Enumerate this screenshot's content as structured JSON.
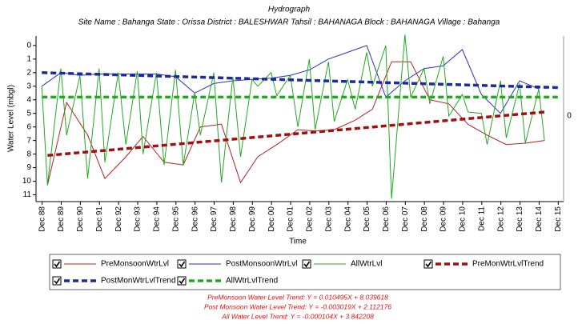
{
  "chart_data": {
    "type": "line",
    "title": "Hydrograph",
    "subtitle": "Site Name : Bahanga  State : Orissa District : BALESHWAR  Tahsil : BAHANAGA  Block : BAHANAGA Village : Bahanga",
    "y_label": "Water Level (mbgl)",
    "x_label": "Time",
    "right_label": "0",
    "y_inverted": true,
    "ylim": [
      -0.7,
      11.5
    ],
    "yticks": [
      0,
      1,
      2,
      3,
      4,
      5,
      6,
      7,
      8,
      9,
      10,
      11
    ],
    "xlim": [
      1988.6,
      2016.2
    ],
    "xticks": [
      {
        "value": 1988.92,
        "label": "Dec 88"
      },
      {
        "value": 1989.92,
        "label": "Dec 89"
      },
      {
        "value": 1990.92,
        "label": "Dec 90"
      },
      {
        "value": 1991.92,
        "label": "Dec 91"
      },
      {
        "value": 1992.92,
        "label": "Dec 92"
      },
      {
        "value": 1993.92,
        "label": "Dec 93"
      },
      {
        "value": 1994.92,
        "label": "Dec 94"
      },
      {
        "value": 1995.92,
        "label": "Dec 95"
      },
      {
        "value": 1996.92,
        "label": "Dec 96"
      },
      {
        "value": 1997.92,
        "label": "Dec 97"
      },
      {
        "value": 1998.92,
        "label": "Dec 98"
      },
      {
        "value": 1999.92,
        "label": "Dec 99"
      },
      {
        "value": 2000.92,
        "label": "Dec 00"
      },
      {
        "value": 2001.92,
        "label": "Dec 01"
      },
      {
        "value": 2002.92,
        "label": "Dec 02"
      },
      {
        "value": 2003.92,
        "label": "Dec 03"
      },
      {
        "value": 2004.92,
        "label": "Dec 04"
      },
      {
        "value": 2005.92,
        "label": "Dec 05"
      },
      {
        "value": 2006.92,
        "label": "Dec 06"
      },
      {
        "value": 2007.92,
        "label": "Dec 07"
      },
      {
        "value": 2008.92,
        "label": "Dec 08"
      },
      {
        "value": 2009.92,
        "label": "Dec 09"
      },
      {
        "value": 2010.92,
        "label": "Dec 10"
      },
      {
        "value": 2011.92,
        "label": "Dec 11"
      },
      {
        "value": 2012.92,
        "label": "Dec 12"
      },
      {
        "value": 2013.92,
        "label": "Dec 13"
      },
      {
        "value": 2014.92,
        "label": "Dec 14"
      },
      {
        "value": 2015.92,
        "label": "Dec 15"
      }
    ],
    "series": [
      {
        "name": "PreMonsoonWtrLvl",
        "color": "#b22222",
        "width": 1,
        "dashed": false,
        "x": [
          1989.2,
          1990.2,
          1991.3,
          1992.2,
          1993.3,
          1994.2,
          1995.3,
          1996.3,
          1997.2,
          1998.3,
          1999.3,
          2000.2,
          2001.2,
          2002.3,
          2003.2,
          2004.2,
          2005.3,
          2006.2,
          2007.2,
          2008.2,
          2009.2,
          2010.2,
          2011.2,
          2012.2,
          2013.2,
          2014.2,
          2015.2
        ],
        "values": [
          10.3,
          4.2,
          6.6,
          9.8,
          8.2,
          6.7,
          8.6,
          8.8,
          6.0,
          5.8,
          10.1,
          8.2,
          7.3,
          6.2,
          6.3,
          6.2,
          5.5,
          4.7,
          1.2,
          1.2,
          4.0,
          4.3,
          5.8,
          6.6,
          7.3,
          7.2,
          7.0
        ]
      },
      {
        "name": "PostMonsoonWtrLvl",
        "color": "#3030c0",
        "width": 1,
        "dashed": false,
        "x": [
          1988.9,
          1989.9,
          1990.9,
          1991.9,
          1992.9,
          1993.9,
          1994.9,
          1995.9,
          1996.9,
          1997.9,
          1998.9,
          1999.9,
          2000.9,
          2001.9,
          2002.9,
          2003.9,
          2004.9,
          2005.9,
          2006.9,
          2007.9,
          2008.9,
          2009.9,
          2010.9,
          2011.9,
          2012.9,
          2013.9,
          2014.9
        ],
        "values": [
          3.0,
          2.0,
          2.2,
          2.1,
          2.1,
          2.1,
          2.1,
          2.3,
          3.5,
          2.8,
          2.6,
          2.5,
          2.4,
          2.2,
          1.8,
          1.0,
          0.5,
          0.0,
          3.8,
          2.6,
          1.7,
          1.5,
          0.3,
          3.6,
          5.0,
          2.6,
          3.2
        ]
      },
      {
        "name": "AllWtrLvl",
        "color": "#22a822",
        "width": 1,
        "dashed": false,
        "x": [
          1988.9,
          1989.2,
          1989.9,
          1990.2,
          1990.9,
          1991.3,
          1991.9,
          1992.2,
          1992.9,
          1993.3,
          1993.9,
          1994.2,
          1994.9,
          1995.3,
          1995.9,
          1996.3,
          1996.9,
          1997.2,
          1997.9,
          1998.3,
          1998.9,
          1999.3,
          1999.9,
          2000.2,
          2000.9,
          2001.2,
          2001.9,
          2002.3,
          2002.9,
          2003.2,
          2003.9,
          2004.2,
          2004.9,
          2005.3,
          2005.9,
          2006.2,
          2006.9,
          2007.2,
          2007.9,
          2008.2,
          2008.9,
          2009.2,
          2009.9,
          2010.2,
          2010.9,
          2011.2,
          2011.9,
          2012.2,
          2012.9,
          2013.2,
          2013.9,
          2014.2,
          2014.9,
          2015.2
        ],
        "values": [
          3.0,
          10.3,
          1.7,
          6.6,
          2.2,
          9.8,
          1.7,
          8.6,
          2.0,
          7.3,
          1.9,
          8.0,
          2.0,
          8.8,
          1.8,
          8.8,
          3.5,
          6.6,
          2.0,
          10.1,
          2.3,
          8.2,
          2.5,
          3.0,
          2.0,
          3.7,
          2.2,
          6.0,
          1.0,
          6.2,
          1.2,
          5.6,
          2.5,
          4.7,
          0.5,
          3.0,
          0.0,
          11.3,
          -0.8,
          3.8,
          1.7,
          4.3,
          0.8,
          5.2,
          3.6,
          4.9,
          5.0,
          7.3,
          2.6,
          6.8,
          2.8,
          7.2,
          3.2,
          7.0
        ]
      },
      {
        "name": "PreMonWtrLvlTrend",
        "color": "#a01010",
        "width": 3.5,
        "dashed": true,
        "x": [
          1989.2,
          2015.2
        ],
        "values": [
          8.1,
          4.9
        ]
      },
      {
        "name": "PostMonWtrLvlTrend",
        "color": "#1c2a9c",
        "width": 3.5,
        "dashed": true,
        "x": [
          1988.9,
          2015.9
        ],
        "values": [
          2.0,
          3.1
        ]
      },
      {
        "name": "AllWtrLvlTrend",
        "color": "#22a822",
        "width": 3.5,
        "dashed": true,
        "x": [
          1988.9,
          2015.9
        ],
        "values": [
          3.8,
          3.8
        ]
      }
    ],
    "annotations": [
      "PreMonsoon Water Level Trend: Y = 0.010495X + 8.039618",
      "Post Monsoon Water Level Trend: Y = -0.003019X + 2.112176",
      "All Water Level Trend: Y = -0.000104X + 3.842208"
    ]
  }
}
